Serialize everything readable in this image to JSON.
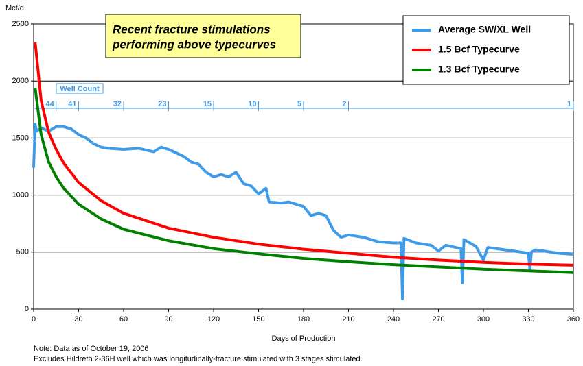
{
  "chart_data": {
    "type": "line",
    "y_label": "Mcf/d",
    "x_label": "Days of Production",
    "annotation": [
      "Recent fracture stimulations",
      "performing above typecurves"
    ],
    "notes": [
      "Note:  Data as of October 19, 2006",
      "Excludes Hildreth 2-36H well which was longitudinally-fracture stimulated with 3 stages stimulated."
    ],
    "xlim": [
      0,
      360
    ],
    "xticks": [
      0,
      30,
      60,
      90,
      120,
      150,
      180,
      210,
      240,
      270,
      300,
      330,
      360
    ],
    "ylim": [
      0,
      2500
    ],
    "yticks": [
      0,
      500,
      1000,
      1500,
      2000,
      2500
    ],
    "grid": true,
    "legend": "top-right",
    "well_count": {
      "label": "Well Count",
      "days": [
        15,
        30,
        60,
        90,
        120,
        150,
        180,
        210,
        360
      ],
      "counts": [
        44,
        41,
        32,
        23,
        15,
        10,
        5,
        2,
        1
      ],
      "color": "#3d9be9"
    },
    "series": [
      {
        "name": "Average SW/XL Well",
        "color": "#3d9be9",
        "x": [
          0,
          1,
          2,
          5,
          10,
          15,
          20,
          25,
          30,
          35,
          40,
          45,
          50,
          60,
          70,
          80,
          85,
          90,
          95,
          100,
          105,
          110,
          115,
          120,
          125,
          130,
          135,
          140,
          145,
          150,
          155,
          157,
          165,
          170,
          180,
          185,
          190,
          195,
          200,
          205,
          210,
          220,
          230,
          240,
          245,
          246,
          247,
          255,
          265,
          270,
          275,
          285,
          286,
          287,
          295,
          300,
          303,
          320,
          330,
          331,
          332,
          335,
          350,
          360
        ],
        "values": [
          1240,
          1620,
          1560,
          1590,
          1560,
          1600,
          1600,
          1580,
          1530,
          1500,
          1450,
          1420,
          1410,
          1400,
          1410,
          1380,
          1420,
          1400,
          1370,
          1340,
          1290,
          1270,
          1200,
          1160,
          1180,
          1160,
          1200,
          1100,
          1080,
          1010,
          1060,
          940,
          930,
          940,
          900,
          820,
          840,
          820,
          690,
          630,
          650,
          630,
          590,
          580,
          580,
          90,
          620,
          580,
          560,
          510,
          560,
          530,
          230,
          610,
          550,
          430,
          540,
          510,
          490,
          340,
          500,
          520,
          490,
          480
        ]
      },
      {
        "name": "1.5 Bcf Typecurve",
        "color": "#ff0000",
        "x": [
          1,
          5,
          10,
          15,
          20,
          30,
          45,
          60,
          90,
          120,
          150,
          180,
          210,
          240,
          270,
          300,
          330,
          360
        ],
        "values": [
          2340,
          1830,
          1550,
          1400,
          1280,
          1110,
          950,
          840,
          710,
          630,
          570,
          525,
          490,
          455,
          430,
          410,
          395,
          385
        ]
      },
      {
        "name": "1.3 Bcf Typecurve",
        "color": "#008000",
        "x": [
          1,
          5,
          10,
          15,
          20,
          30,
          45,
          60,
          90,
          120,
          150,
          180,
          210,
          240,
          270,
          300,
          330,
          360
        ],
        "values": [
          1940,
          1530,
          1290,
          1160,
          1060,
          920,
          790,
          700,
          600,
          530,
          485,
          445,
          415,
          390,
          370,
          350,
          335,
          320
        ]
      }
    ]
  }
}
